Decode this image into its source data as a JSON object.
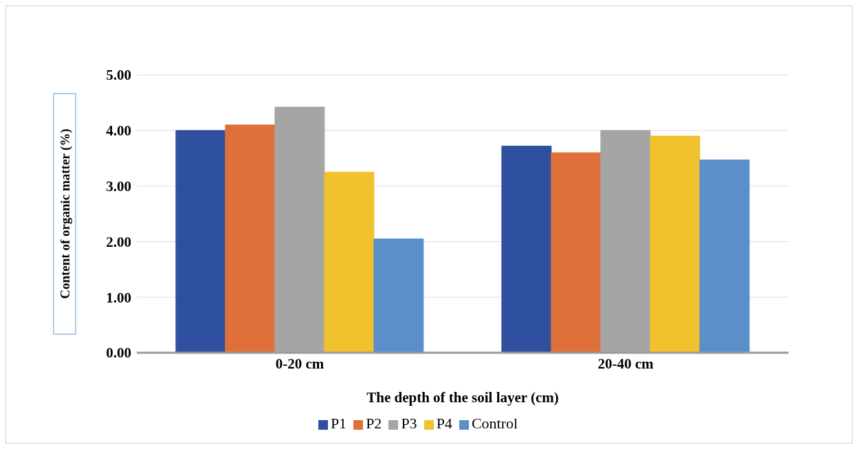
{
  "chart_data": {
    "type": "bar",
    "xlabel": "The depth of the soil layer (cm)",
    "ylabel": "Content of organic matter (%)",
    "categories": [
      "0-20 cm",
      "20-40 cm"
    ],
    "series": [
      {
        "name": "P1",
        "color": "#2f4f9f",
        "values": [
          4.0,
          3.72
        ]
      },
      {
        "name": "P2",
        "color": "#e0703a",
        "values": [
          4.1,
          3.6
        ]
      },
      {
        "name": "P3",
        "color": "#a5a5a5",
        "values": [
          4.42,
          4.0
        ]
      },
      {
        "name": "P4",
        "color": "#f2c12e",
        "values": [
          3.25,
          3.9
        ]
      },
      {
        "name": "Control",
        "color": "#5b8fc9",
        "values": [
          2.05,
          3.47
        ]
      }
    ],
    "ylim": [
      0,
      5
    ],
    "yticks": [
      {
        "value": 0,
        "label": "0.00"
      },
      {
        "value": 1,
        "label": "1.00"
      },
      {
        "value": 2,
        "label": "2.00"
      },
      {
        "value": 3,
        "label": "3.00"
      },
      {
        "value": 4,
        "label": "4.00"
      },
      {
        "value": 5,
        "label": "5.00"
      }
    ],
    "grid": "y",
    "legend": "bottom"
  }
}
